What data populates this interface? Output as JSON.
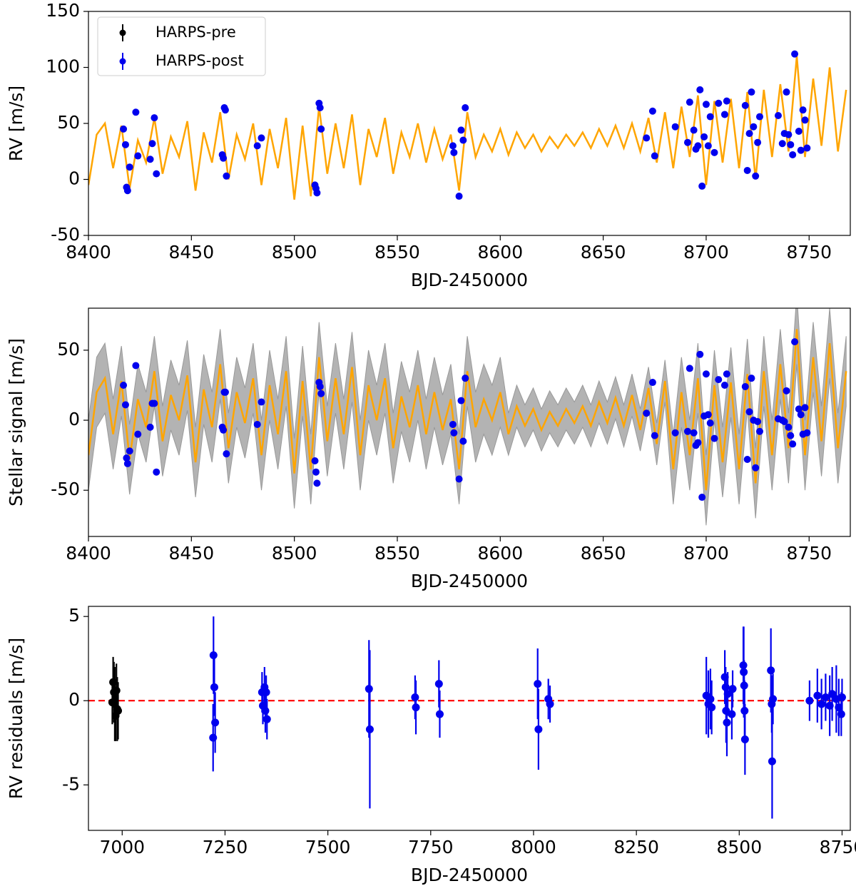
{
  "chart_data": [
    {
      "type": "scatter",
      "xlabel": "BJD-2450000",
      "ylabel": "RV [m/s]",
      "xlim": [
        8400,
        8770
      ],
      "ylim": [
        -50,
        150
      ],
      "xticks": [
        8400,
        8450,
        8500,
        8550,
        8600,
        8650,
        8700,
        8750
      ],
      "yticks": [
        -50,
        0,
        50,
        100,
        150
      ],
      "color": "#0000ee",
      "x": [
        8417,
        8418,
        8418.5,
        8419,
        8420,
        8423,
        8424,
        8430,
        8431,
        8432,
        8433,
        8465,
        8465.5,
        8466,
        8466.5,
        8467,
        8482,
        8484,
        8510,
        8510.5,
        8511,
        8512,
        8512.5,
        8513,
        8577,
        8577.5,
        8580,
        8581,
        8582,
        8583,
        8671,
        8674,
        8675,
        8685,
        8691,
        8692,
        8694,
        8695,
        8696,
        8697,
        8698,
        8699,
        8700,
        8701,
        8702,
        8704,
        8706,
        8709,
        8710,
        8719,
        8720,
        8721,
        8722,
        8723,
        8724,
        8725,
        8726,
        8735,
        8737,
        8738,
        8739,
        8740,
        8741,
        8742,
        8743,
        8745,
        8746,
        8747,
        8748,
        8749
      ],
      "values": [
        45,
        31,
        -7,
        -10,
        11,
        60,
        21,
        18,
        32,
        55,
        5,
        22,
        19,
        64,
        62,
        3,
        30,
        37,
        -5,
        -8,
        -12,
        68,
        64,
        45,
        30,
        24,
        -15,
        44,
        35,
        64,
        37,
        61,
        21,
        47,
        33,
        69,
        44,
        27,
        30,
        80,
        -6,
        38,
        67,
        30,
        56,
        24,
        68,
        58,
        70,
        66,
        8,
        41,
        78,
        47,
        3,
        33,
        56,
        57,
        32,
        41,
        78,
        40,
        31,
        22,
        112,
        43,
        26,
        62,
        53,
        28
      ],
      "model": {
        "color": "orange",
        "x": [
          8400,
          8404,
          8408,
          8412,
          8416,
          8420,
          8424,
          8428,
          8432,
          8436,
          8440,
          8444,
          8448,
          8452,
          8456,
          8460,
          8464,
          8468,
          8472,
          8476,
          8480,
          8484,
          8488,
          8492,
          8496,
          8500,
          8504,
          8508,
          8512,
          8516,
          8520,
          8524,
          8528,
          8532,
          8536,
          8540,
          8544,
          8548,
          8552,
          8556,
          8560,
          8564,
          8568,
          8572,
          8576,
          8580,
          8584,
          8588,
          8592,
          8596,
          8600,
          8604,
          8608,
          8612,
          8616,
          8620,
          8624,
          8628,
          8632,
          8636,
          8640,
          8644,
          8648,
          8652,
          8656,
          8660,
          8664,
          8668,
          8672,
          8676,
          8680,
          8684,
          8688,
          8692,
          8696,
          8700,
          8704,
          8708,
          8712,
          8716,
          8720,
          8724,
          8728,
          8732,
          8736,
          8740,
          8744,
          8748,
          8752,
          8756,
          8760,
          8764,
          8768
        ],
        "values": [
          -5,
          40,
          50,
          10,
          48,
          -8,
          35,
          15,
          55,
          5,
          38,
          20,
          52,
          -10,
          42,
          15,
          60,
          0,
          40,
          18,
          50,
          -5,
          45,
          10,
          55,
          -18,
          48,
          -15,
          65,
          5,
          50,
          10,
          58,
          -5,
          45,
          20,
          55,
          5,
          42,
          20,
          50,
          15,
          45,
          18,
          40,
          -10,
          60,
          20,
          40,
          25,
          45,
          22,
          42,
          28,
          40,
          25,
          38,
          28,
          40,
          30,
          42,
          28,
          45,
          30,
          48,
          28,
          50,
          25,
          55,
          15,
          60,
          10,
          65,
          20,
          75,
          -5,
          70,
          15,
          72,
          10,
          78,
          0,
          80,
          20,
          85,
          25,
          110,
          20,
          90,
          30,
          100,
          25,
          80
        ]
      },
      "legend": [
        {
          "name": "HARPS-pre",
          "color": "#000000"
        },
        {
          "name": "HARPS-post",
          "color": "#0000ee"
        }
      ],
      "legend_position": "upper left"
    },
    {
      "type": "scatter",
      "xlabel": "BJD-2450000",
      "ylabel": "Stellar signal [m/s]",
      "xlim": [
        8400,
        8770
      ],
      "ylim": [
        -83,
        80
      ],
      "xticks": [
        8400,
        8450,
        8500,
        8550,
        8600,
        8650,
        8700,
        8750
      ],
      "yticks": [
        -50,
        0,
        50
      ],
      "color": "#0000ee",
      "x": [
        8417,
        8418,
        8418.5,
        8419,
        8420,
        8423,
        8424,
        8430,
        8431,
        8432,
        8433,
        8465,
        8465.5,
        8466,
        8466.5,
        8467,
        8482,
        8484,
        8510,
        8510.5,
        8511,
        8512,
        8512.5,
        8513,
        8577,
        8577.5,
        8580,
        8581,
        8582,
        8583,
        8671,
        8674,
        8675,
        8685,
        8691,
        8692,
        8694,
        8695,
        8696,
        8697,
        8698,
        8699,
        8700,
        8701,
        8702,
        8704,
        8706,
        8709,
        8710,
        8719,
        8720,
        8721,
        8722,
        8723,
        8724,
        8725,
        8726,
        8735,
        8737,
        8738,
        8739,
        8740,
        8741,
        8742,
        8743,
        8745,
        8746,
        8747,
        8748,
        8749
      ],
      "values": [
        25,
        11,
        -27,
        -31,
        -22,
        39,
        -10,
        -5,
        12,
        12,
        -37,
        -5,
        -7,
        20,
        20,
        -24,
        -3,
        13,
        -29,
        -37,
        -45,
        27,
        24,
        19,
        -3,
        -9,
        -42,
        14,
        -15,
        30,
        5,
        27,
        -11,
        -9,
        -8,
        37,
        -9,
        -18,
        -16,
        47,
        -55,
        3,
        33,
        4,
        -2,
        -13,
        29,
        25,
        33,
        24,
        -28,
        6,
        30,
        0,
        -34,
        -1,
        -8,
        1,
        0,
        -1,
        21,
        -5,
        -11,
        -17,
        56,
        8,
        4,
        -10,
        9,
        -9
      ],
      "model": {
        "color": "orange",
        "x": [
          8400,
          8404,
          8408,
          8412,
          8416,
          8420,
          8424,
          8428,
          8432,
          8436,
          8440,
          8444,
          8448,
          8452,
          8456,
          8460,
          8464,
          8468,
          8472,
          8476,
          8480,
          8484,
          8488,
          8492,
          8496,
          8500,
          8504,
          8508,
          8512,
          8516,
          8520,
          8524,
          8528,
          8532,
          8536,
          8540,
          8544,
          8548,
          8552,
          8556,
          8560,
          8564,
          8568,
          8572,
          8576,
          8580,
          8584,
          8588,
          8592,
          8596,
          8600,
          8604,
          8608,
          8612,
          8616,
          8620,
          8624,
          8628,
          8632,
          8636,
          8640,
          8644,
          8648,
          8652,
          8656,
          8660,
          8664,
          8668,
          8672,
          8676,
          8680,
          8684,
          8688,
          8692,
          8696,
          8700,
          8704,
          8708,
          8712,
          8716,
          8720,
          8724,
          8728,
          8732,
          8736,
          8740,
          8744,
          8748,
          8752,
          8756,
          8760,
          8764,
          8768
        ],
        "values": [
          -25,
          20,
          30,
          -10,
          28,
          -28,
          15,
          -5,
          35,
          -15,
          18,
          0,
          32,
          -30,
          22,
          -5,
          40,
          -20,
          20,
          -2,
          30,
          -25,
          25,
          -10,
          35,
          -38,
          28,
          -35,
          45,
          -15,
          30,
          -10,
          38,
          -25,
          25,
          0,
          30,
          -20,
          17,
          -5,
          25,
          -10,
          20,
          -7,
          15,
          -35,
          35,
          -5,
          15,
          0,
          20,
          -10,
          10,
          -4,
          8,
          -7,
          6,
          -4,
          8,
          -2,
          10,
          -4,
          13,
          -2,
          16,
          -4,
          18,
          -7,
          23,
          -17,
          28,
          -35,
          20,
          -25,
          30,
          -50,
          25,
          -30,
          27,
          -35,
          33,
          -45,
          35,
          -25,
          40,
          -20,
          65,
          -25,
          45,
          -15,
          55,
          -20,
          35
        ]
      },
      "band": {
        "color": "#b3b3b3",
        "upper": [
          0,
          45,
          55,
          15,
          53,
          -3,
          40,
          20,
          60,
          10,
          43,
          25,
          57,
          -5,
          47,
          20,
          65,
          5,
          45,
          23,
          55,
          0,
          50,
          15,
          60,
          -13,
          53,
          -10,
          70,
          10,
          55,
          15,
          63,
          0,
          50,
          25,
          55,
          5,
          42,
          20,
          50,
          15,
          45,
          18,
          40,
          -10,
          60,
          20,
          40,
          25,
          45,
          5,
          25,
          11,
          23,
          8,
          21,
          11,
          23,
          13,
          25,
          11,
          28,
          13,
          31,
          11,
          33,
          8,
          38,
          -2,
          43,
          -10,
          45,
          0,
          55,
          -25,
          50,
          -5,
          52,
          -10,
          58,
          -20,
          60,
          0,
          65,
          5,
          90,
          0,
          70,
          10,
          80,
          5,
          60
        ],
        "lower": [
          -50,
          -5,
          5,
          -35,
          3,
          -53,
          -10,
          -30,
          10,
          -40,
          -7,
          -25,
          7,
          -55,
          -3,
          -30,
          15,
          -45,
          -5,
          -27,
          5,
          -50,
          0,
          -35,
          10,
          -63,
          3,
          -60,
          20,
          -40,
          5,
          -35,
          13,
          -50,
          0,
          -25,
          5,
          -45,
          -8,
          -30,
          0,
          -35,
          -5,
          -32,
          -10,
          -60,
          10,
          -30,
          -10,
          -25,
          -5,
          -25,
          -5,
          -19,
          -7,
          -22,
          -9,
          -19,
          -7,
          -17,
          -5,
          -19,
          -2,
          -17,
          1,
          -19,
          3,
          -22,
          8,
          -32,
          13,
          -60,
          -5,
          -50,
          5,
          -75,
          0,
          -55,
          2,
          -60,
          8,
          -70,
          10,
          -50,
          15,
          -45,
          40,
          -50,
          20,
          -40,
          30,
          -45,
          10
        ]
      }
    },
    {
      "type": "errorbar",
      "xlabel": "BJD-2450000",
      "ylabel": "RV residuals [m/s]",
      "xlim": [
        6918,
        8770
      ],
      "ylim": [
        -7.7,
        5.6
      ],
      "xticks": [
        7000,
        7250,
        7500,
        7750,
        8000,
        8250,
        8500,
        8750
      ],
      "yticks": [
        -5,
        0,
        5
      ],
      "reference_line": {
        "value": 0,
        "color": "red"
      },
      "series": [
        {
          "name": "HARPS-pre",
          "color": "#000000",
          "x": [
            6976,
            6978,
            6980,
            6982,
            6984,
            6986,
            6988,
            6990
          ],
          "values": [
            -0.1,
            1.1,
            0.5,
            -0.2,
            -0.9,
            0.6,
            -0.5,
            -0.6
          ],
          "errors": [
            1.3,
            1.5,
            1.8,
            2.2,
            1.5,
            1.6,
            1.9,
            1.7
          ]
        },
        {
          "name": "HARPS-post",
          "color": "#0000ee",
          "x": [
            7221,
            7222,
            7224,
            7226,
            7340,
            7342,
            7346,
            7348,
            7350,
            7352,
            7600,
            7602,
            7712,
            7714,
            7770,
            7772,
            8010,
            8012,
            8036,
            8040,
            8420,
            8425,
            8430,
            8433,
            8465,
            8467,
            8468,
            8470,
            8472,
            8482,
            8484,
            8510,
            8511,
            8512,
            8513,
            8514,
            8577,
            8579,
            8580,
            8582,
            8671,
            8690,
            8700,
            8710,
            8720,
            8726,
            8736,
            8742,
            8748,
            8750
          ],
          "values": [
            -2.2,
            2.7,
            0.8,
            -1.3,
            0.5,
            -0.3,
            0.8,
            -0.6,
            0.5,
            -1.1,
            0.7,
            -1.7,
            0.2,
            -0.4,
            1.0,
            -0.8,
            1.0,
            -1.7,
            0.1,
            -0.2,
            0.3,
            -0.2,
            0.1,
            -0.4,
            1.4,
            0.8,
            -0.6,
            -1.3,
            0.4,
            -0.8,
            0.7,
            2.1,
            1.7,
            0.9,
            -0.6,
            -2.3,
            1.8,
            -0.2,
            -3.6,
            0.1,
            0.0,
            0.3,
            -0.2,
            0.2,
            -0.3,
            0.4,
            0.1,
            -0.4,
            -0.8,
            0.2
          ],
          "errors": [
            2.0,
            2.3,
            1.7,
            1.8,
            1.2,
            1.1,
            1.2,
            1.3,
            1.0,
            1.2,
            2.9,
            4.7,
            1.3,
            1.6,
            1.4,
            1.4,
            2.1,
            2.4,
            1.2,
            1.1,
            2.3,
            2.0,
            1.8,
            1.6,
            1.6,
            1.2,
            1.9,
            2.0,
            1.3,
            1.5,
            1.1,
            2.3,
            2.7,
            1.5,
            1.8,
            2.1,
            2.5,
            1.7,
            3.4,
            1.5,
            1.2,
            1.6,
            1.5,
            1.4,
            1.8,
            1.6,
            2.0,
            1.7,
            1.3,
            1.1
          ]
        }
      ]
    }
  ]
}
